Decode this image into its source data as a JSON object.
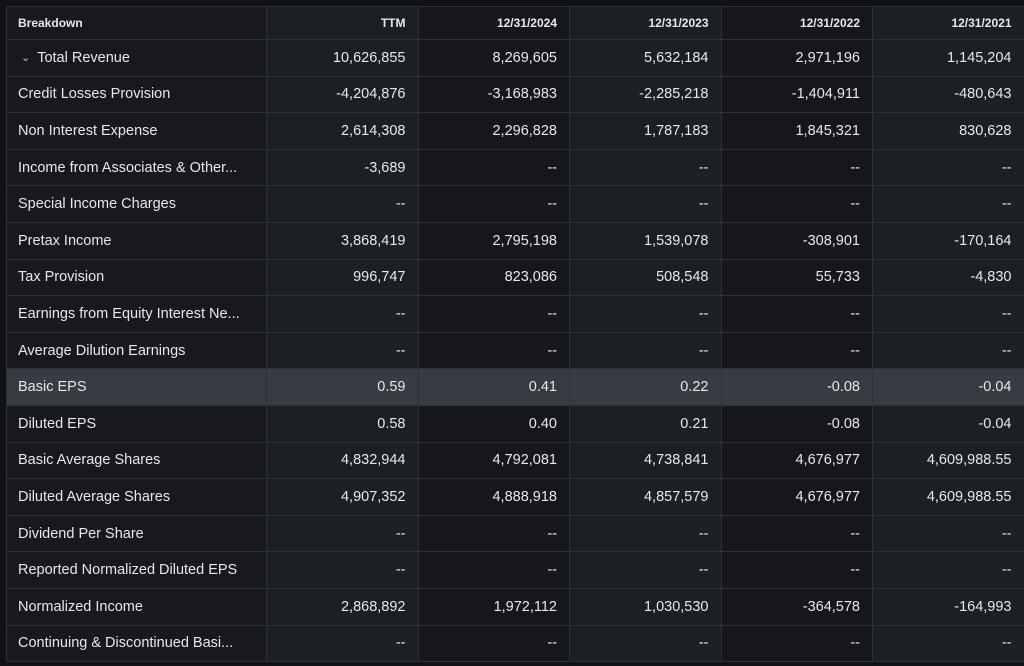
{
  "columns": [
    "Breakdown",
    "TTM",
    "12/31/2024",
    "12/31/2023",
    "12/31/2022",
    "12/31/2021"
  ],
  "highlight_row": 9,
  "rows": [
    {
      "label": "Total Revenue",
      "expandable": true,
      "values": [
        "10,626,855",
        "8,269,605",
        "5,632,184",
        "2,971,196",
        "1,145,204"
      ]
    },
    {
      "label": "Credit Losses Provision",
      "values": [
        "-4,204,876",
        "-3,168,983",
        "-2,285,218",
        "-1,404,911",
        "-480,643"
      ]
    },
    {
      "label": "Non Interest Expense",
      "values": [
        "2,614,308",
        "2,296,828",
        "1,787,183",
        "1,845,321",
        "830,628"
      ]
    },
    {
      "label": "Income from Associates & Other...",
      "values": [
        "-3,689",
        "--",
        "--",
        "--",
        "--"
      ]
    },
    {
      "label": "Special Income Charges",
      "values": [
        "--",
        "--",
        "--",
        "--",
        "--"
      ]
    },
    {
      "label": "Pretax Income",
      "values": [
        "3,868,419",
        "2,795,198",
        "1,539,078",
        "-308,901",
        "-170,164"
      ]
    },
    {
      "label": "Tax Provision",
      "values": [
        "996,747",
        "823,086",
        "508,548",
        "55,733",
        "-4,830"
      ]
    },
    {
      "label": "Earnings from Equity Interest Ne...",
      "values": [
        "--",
        "--",
        "--",
        "--",
        "--"
      ]
    },
    {
      "label": "Average Dilution Earnings",
      "values": [
        "--",
        "--",
        "--",
        "--",
        "--"
      ]
    },
    {
      "label": "Basic EPS",
      "values": [
        "0.59",
        "0.41",
        "0.22",
        "-0.08",
        "-0.04"
      ]
    },
    {
      "label": "Diluted EPS",
      "values": [
        "0.58",
        "0.40",
        "0.21",
        "-0.08",
        "-0.04"
      ]
    },
    {
      "label": "Basic Average Shares",
      "values": [
        "4,832,944",
        "4,792,081",
        "4,738,841",
        "4,676,977",
        "4,609,988.55"
      ]
    },
    {
      "label": "Diluted Average Shares",
      "values": [
        "4,907,352",
        "4,888,918",
        "4,857,579",
        "4,676,977",
        "4,609,988.55"
      ]
    },
    {
      "label": "Dividend Per Share",
      "values": [
        "--",
        "--",
        "--",
        "--",
        "--"
      ]
    },
    {
      "label": "Reported Normalized Diluted EPS",
      "values": [
        "--",
        "--",
        "--",
        "--",
        "--"
      ]
    },
    {
      "label": "Normalized Income",
      "values": [
        "2,868,892",
        "1,972,112",
        "1,030,530",
        "-364,578",
        "-164,993"
      ]
    },
    {
      "label": "Continuing & Discontinued Basi...",
      "values": [
        "--",
        "--",
        "--",
        "--",
        "--"
      ]
    }
  ]
}
